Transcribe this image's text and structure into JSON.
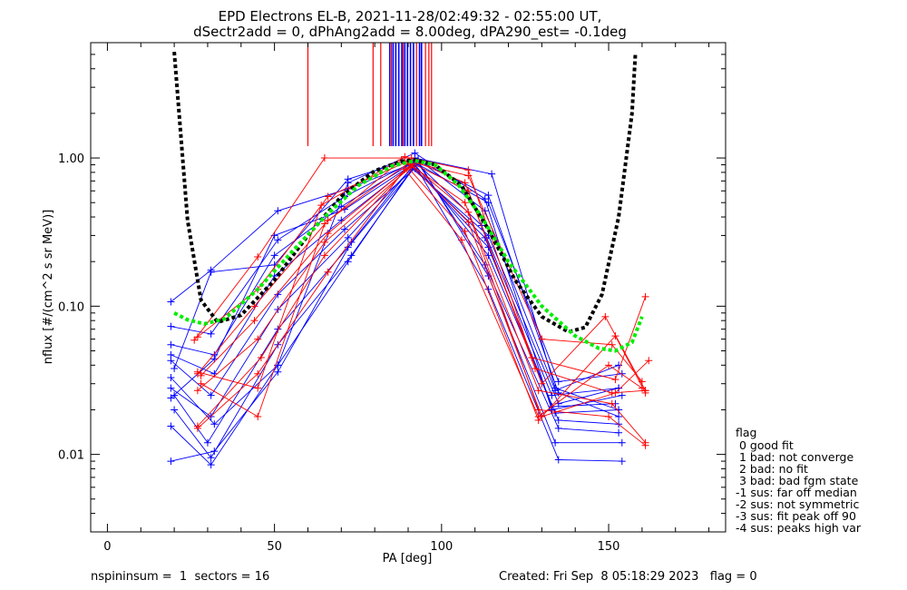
{
  "chart_data": {
    "type": "line",
    "title": "EPD Electrons EL-B, 2021-11-28/02:49:32 - 02:55:00 UT,",
    "subtitle": "dSectr2add = 0, dPhAng2add = 8.00deg, dPA290_est=  -0.1deg",
    "xlabel": "PA [deg]",
    "ylabel": "nflux [#/(cm^2 s sr MeV)]",
    "xlim": [
      -5,
      185
    ],
    "ylim": [
      0.003,
      6
    ],
    "y_scale": "log",
    "x_ticks": [
      {
        "value": 0,
        "label": "0"
      },
      {
        "value": 50,
        "label": "50"
      },
      {
        "value": 100,
        "label": "100"
      },
      {
        "value": 150,
        "label": "150"
      }
    ],
    "y_ticks": [
      {
        "value": 0.01,
        "label": "0.01"
      },
      {
        "value": 0.1,
        "label": "0.10"
      },
      {
        "value": 1,
        "label": "1.00"
      }
    ],
    "grid": false,
    "colors": {
      "blue": "#0000ff",
      "red": "#ff0000",
      "black": "#000000",
      "green": "#00ee00"
    },
    "spikes_blue_pa": [
      84.5,
      85.5,
      86.3,
      87.2,
      88.1,
      89.0,
      89.8,
      90.7,
      91.6,
      93.4,
      94.0
    ],
    "spikes_red_pa": [
      60,
      79.5,
      81.8,
      85.0,
      88.5,
      92.5,
      95.2,
      96.2,
      97.0
    ],
    "blue_traces": [
      [
        [
          19,
          0.107
        ],
        [
          31,
          0.175
        ],
        [
          51,
          0.44
        ],
        [
          72,
          0.62
        ],
        [
          92,
          0.93
        ],
        [
          114,
          0.5
        ],
        [
          135,
          0.031
        ],
        [
          154,
          0.035
        ]
      ],
      [
        [
          19,
          0.073
        ],
        [
          31,
          0.065
        ],
        [
          51,
          0.28
        ],
        [
          71,
          0.55
        ],
        [
          93,
          0.98
        ],
        [
          113,
          0.44
        ],
        [
          134,
          0.027
        ],
        [
          153,
          0.04
        ]
      ],
      [
        [
          19,
          0.055
        ],
        [
          32,
          0.047
        ],
        [
          50,
          0.22
        ],
        [
          70,
          0.47
        ],
        [
          92,
          0.95
        ],
        [
          112,
          0.35
        ],
        [
          133,
          0.025
        ],
        [
          153,
          0.028
        ]
      ],
      [
        [
          19,
          0.047
        ],
        [
          32,
          0.035
        ],
        [
          50,
          0.16
        ],
        [
          70,
          0.38
        ],
        [
          91,
          0.89
        ],
        [
          113,
          0.29
        ],
        [
          133,
          0.021
        ],
        [
          152,
          0.022
        ]
      ],
      [
        [
          19,
          0.043
        ],
        [
          31,
          0.025
        ],
        [
          51,
          0.12
        ],
        [
          71,
          0.33
        ],
        [
          92,
          0.85
        ],
        [
          114,
          0.25
        ],
        [
          134,
          0.019
        ],
        [
          153,
          0.02
        ]
      ],
      [
        [
          19,
          0.028
        ],
        [
          31,
          0.018
        ],
        [
          51,
          0.095
        ],
        [
          72,
          0.29
        ],
        [
          92,
          0.9
        ],
        [
          114,
          0.22
        ],
        [
          135,
          0.017
        ],
        [
          153,
          0.016
        ]
      ],
      [
        [
          20,
          0.025
        ],
        [
          30,
          0.012
        ],
        [
          51,
          0.07
        ],
        [
          72,
          0.25
        ],
        [
          93,
          0.92
        ],
        [
          113,
          0.19
        ],
        [
          135,
          0.015
        ],
        [
          153,
          0.014
        ]
      ],
      [
        [
          20,
          0.02
        ],
        [
          31,
          0.0095
        ],
        [
          51,
          0.055
        ],
        [
          73,
          0.22
        ],
        [
          93,
          0.95
        ],
        [
          114,
          0.16
        ],
        [
          134,
          0.012
        ],
        [
          154,
          0.012
        ]
      ],
      [
        [
          19,
          0.0155
        ],
        [
          31,
          0.0085
        ],
        [
          51,
          0.04
        ],
        [
          72,
          0.2
        ],
        [
          92,
          0.9
        ],
        [
          114,
          0.13
        ],
        [
          135,
          0.0092
        ],
        [
          154,
          0.009
        ]
      ],
      [
        [
          19,
          0.009
        ],
        [
          32,
          0.0105
        ],
        [
          51,
          0.036
        ],
        [
          73,
          0.27
        ],
        [
          91,
          0.86
        ],
        [
          114,
          0.3
        ],
        [
          135,
          0.022
        ],
        [
          153,
          0.028
        ]
      ],
      [
        [
          20,
          0.038
        ],
        [
          31,
          0.17
        ],
        [
          50,
          0.19
        ],
        [
          72,
          0.72
        ],
        [
          92,
          1.0
        ],
        [
          115,
          0.78
        ],
        [
          134,
          0.028
        ],
        [
          153,
          0.02
        ]
      ],
      [
        [
          19,
          0.024
        ],
        [
          32,
          0.044
        ],
        [
          50,
          0.3
        ],
        [
          71,
          0.45
        ],
        [
          93,
          0.96
        ],
        [
          114,
          0.56
        ],
        [
          135,
          0.026
        ],
        [
          153,
          0.018
        ]
      ],
      [
        [
          19,
          0.033
        ],
        [
          32,
          0.016
        ],
        [
          51,
          0.04
        ],
        [
          72,
          0.68
        ],
        [
          92,
          1.08
        ],
        [
          113,
          0.53
        ],
        [
          133,
          0.02
        ],
        [
          154,
          0.025
        ]
      ]
    ],
    "red_traces": [
      [
        [
          26,
          0.059
        ],
        [
          45,
          0.215
        ],
        [
          65,
          1.0
        ],
        [
          91,
          1.0
        ],
        [
          108,
          0.83
        ],
        [
          127,
          0.045
        ],
        [
          152,
          0.032
        ],
        [
          161,
          0.116
        ]
      ],
      [
        [
          27,
          0.062
        ],
        [
          45,
          0.13
        ],
        [
          66,
          0.55
        ],
        [
          90,
          0.95
        ],
        [
          108,
          0.6
        ],
        [
          128,
          0.038
        ],
        [
          151,
          0.026
        ],
        [
          161,
          0.027
        ]
      ],
      [
        [
          27,
          0.035
        ],
        [
          44,
          0.1
        ],
        [
          66,
          0.38
        ],
        [
          90,
          0.92
        ],
        [
          107,
          0.5
        ],
        [
          129,
          0.027
        ],
        [
          151,
          0.022
        ],
        [
          161,
          0.012
        ]
      ],
      [
        [
          28,
          0.034
        ],
        [
          44,
          0.08
        ],
        [
          66,
          0.31
        ],
        [
          91,
          0.9
        ],
        [
          108,
          0.43
        ],
        [
          129,
          0.02
        ],
        [
          150,
          0.018
        ],
        [
          161,
          0.0115
        ]
      ],
      [
        [
          27,
          0.027
        ],
        [
          45,
          0.06
        ],
        [
          65,
          0.27
        ],
        [
          91,
          0.88
        ],
        [
          108,
          0.37
        ],
        [
          130,
          0.018
        ],
        [
          152,
          0.026
        ],
        [
          162,
          0.043
        ]
      ],
      [
        [
          27,
          0.0155
        ],
        [
          46,
          0.045
        ],
        [
          65,
          0.22
        ],
        [
          90,
          0.86
        ],
        [
          107,
          0.32
        ],
        [
          129,
          0.017
        ],
        [
          152,
          0.063
        ],
        [
          161,
          0.026
        ]
      ],
      [
        [
          27,
          0.015
        ],
        [
          45,
          0.035
        ],
        [
          66,
          0.17
        ],
        [
          89,
          0.84
        ],
        [
          106,
          0.28
        ],
        [
          129,
          0.018
        ],
        [
          150,
          0.04
        ],
        [
          160,
          0.028
        ]
      ],
      [
        [
          28,
          0.03
        ],
        [
          45,
          0.018
        ],
        [
          65,
          0.36
        ],
        [
          88,
          0.97
        ],
        [
          108,
          0.76
        ],
        [
          130,
          0.06
        ],
        [
          151,
          0.055
        ],
        [
          160,
          0.031
        ]
      ],
      [
        [
          27,
          0.036
        ],
        [
          45,
          0.028
        ],
        [
          64,
          0.48
        ],
        [
          89,
          1.02
        ],
        [
          107,
          0.68
        ],
        [
          130,
          0.03
        ],
        [
          149,
          0.085
        ],
        [
          161,
          0.027
        ]
      ]
    ],
    "black_fit": [
      [
        20,
        5.2
      ],
      [
        24,
        0.38
      ],
      [
        28,
        0.11
      ],
      [
        33,
        0.078
      ],
      [
        40,
        0.087
      ],
      [
        50,
        0.15
      ],
      [
        60,
        0.3
      ],
      [
        70,
        0.55
      ],
      [
        80,
        0.82
      ],
      [
        88,
        0.95
      ],
      [
        92,
        0.97
      ],
      [
        98,
        0.9
      ],
      [
        106,
        0.65
      ],
      [
        114,
        0.33
      ],
      [
        122,
        0.15
      ],
      [
        130,
        0.085
      ],
      [
        138,
        0.067
      ],
      [
        143,
        0.072
      ],
      [
        148,
        0.12
      ],
      [
        153,
        0.4
      ],
      [
        157,
        2.0
      ],
      [
        158,
        5.0
      ]
    ],
    "green_fit": [
      [
        20,
        0.09
      ],
      [
        24,
        0.081
      ],
      [
        29,
        0.076
      ],
      [
        35,
        0.082
      ],
      [
        45,
        0.13
      ],
      [
        55,
        0.23
      ],
      [
        65,
        0.4
      ],
      [
        75,
        0.65
      ],
      [
        85,
        0.88
      ],
      [
        92,
        0.96
      ],
      [
        98,
        0.9
      ],
      [
        105,
        0.66
      ],
      [
        112,
        0.4
      ],
      [
        120,
        0.2
      ],
      [
        130,
        0.1
      ],
      [
        140,
        0.063
      ],
      [
        147,
        0.052
      ],
      [
        152,
        0.05
      ],
      [
        157,
        0.057
      ],
      [
        160,
        0.085
      ]
    ],
    "legend": {
      "title": "flag",
      "items": [
        " 0 good fit",
        " 1 bad: not converge",
        " 2 bad: no fit",
        " 3 bad: bad fgm state",
        "-1 sus: far off median",
        "-2 sus: not symmetric",
        "-3 sus: fit peak off 90",
        "-4 sus: peaks high var"
      ]
    }
  },
  "footer": {
    "left": "nspininsum =  1  sectors = 16",
    "right": "Created: Fri Sep  8 05:18:29 2023   flag = 0"
  }
}
